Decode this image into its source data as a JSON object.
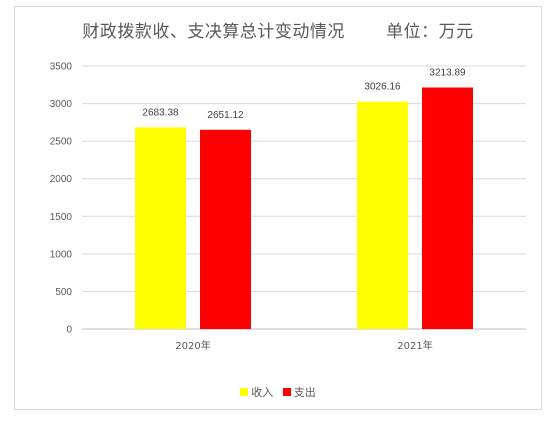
{
  "chart_data": {
    "type": "bar",
    "title": "财政拨款收、支决算总计变动情况       单位：万元",
    "categories": [
      "2020年",
      "2021年"
    ],
    "series": [
      {
        "name": "收入",
        "color": "#ffff00",
        "values": [
          2683.38,
          3026.16
        ]
      },
      {
        "name": "支出",
        "color": "#ff0000",
        "values": [
          2651.12,
          3213.89
        ]
      }
    ],
    "ylim": [
      0,
      3500
    ],
    "yticks": [
      0,
      500,
      1000,
      1500,
      2000,
      2500,
      3000,
      3500
    ],
    "grid": true,
    "legend_position": "bottom"
  }
}
